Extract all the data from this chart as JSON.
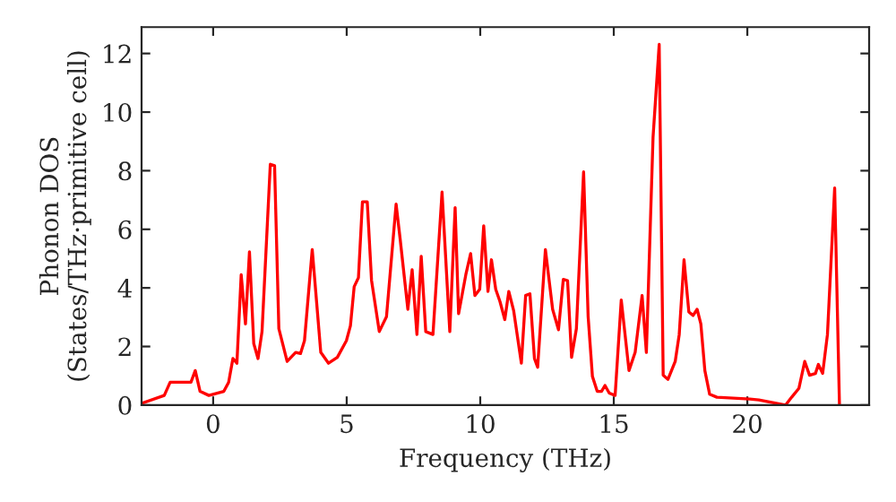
{
  "chart_data": {
    "type": "line",
    "xlabel": "Frequency (THz)",
    "ylabel": "Phonon DOS\n(States/THz·primitive cell)",
    "xlim": [
      -2.68,
      24.56
    ],
    "ylim": [
      0,
      12.9
    ],
    "xticks": [
      0,
      5,
      10,
      15,
      20
    ],
    "yticks": [
      0,
      2,
      4,
      6,
      8,
      10,
      12
    ],
    "grid": false,
    "legend": false,
    "series": [
      {
        "color": "#ff0000",
        "x": [
          -2.68,
          -1.83,
          -1.61,
          -0.83,
          -0.67,
          -0.49,
          -0.16,
          0.4,
          0.58,
          0.74,
          0.89,
          1.05,
          1.21,
          1.36,
          1.52,
          1.68,
          1.83,
          2.14,
          2.3,
          2.46,
          2.77,
          3.09,
          3.27,
          3.42,
          3.71,
          4.03,
          4.32,
          4.65,
          4.99,
          5.14,
          5.28,
          5.44,
          5.59,
          5.77,
          5.93,
          6.22,
          6.49,
          6.85,
          7.0,
          7.29,
          7.45,
          7.63,
          7.79,
          7.96,
          8.23,
          8.57,
          8.86,
          9.06,
          9.19,
          9.46,
          9.64,
          9.8,
          9.98,
          10.13,
          10.29,
          10.42,
          10.58,
          10.74,
          10.92,
          11.07,
          11.25,
          11.54,
          11.7,
          11.86,
          12.03,
          12.15,
          12.44,
          12.71,
          12.93,
          13.11,
          13.27,
          13.42,
          13.6,
          13.87,
          14.04,
          14.2,
          14.38,
          14.54,
          14.67,
          14.83,
          15.05,
          15.28,
          15.57,
          15.8,
          16.06,
          16.22,
          16.47,
          16.7,
          16.85,
          17.03,
          17.3,
          17.45,
          17.63,
          17.81,
          17.97,
          18.12,
          18.26,
          18.41,
          18.59,
          18.86,
          20.09,
          20.43,
          21.43,
          21.66,
          21.93,
          22.15,
          22.33,
          22.55,
          22.66,
          22.82,
          23.0,
          23.27,
          23.45
        ],
        "values": [
          0.06,
          0.33,
          0.78,
          0.78,
          1.18,
          0.47,
          0.33,
          0.47,
          0.78,
          1.59,
          1.43,
          4.45,
          2.77,
          5.23,
          2.1,
          1.59,
          2.51,
          8.22,
          8.17,
          2.61,
          1.49,
          1.8,
          1.76,
          2.2,
          5.31,
          1.8,
          1.43,
          1.63,
          2.2,
          2.71,
          4.04,
          4.35,
          6.94,
          6.94,
          4.26,
          2.51,
          3.02,
          6.86,
          5.68,
          3.27,
          4.62,
          2.41,
          5.08,
          2.51,
          2.41,
          7.27,
          2.51,
          6.74,
          3.12,
          4.45,
          5.17,
          3.74,
          3.95,
          6.12,
          3.88,
          4.96,
          3.95,
          3.53,
          2.92,
          3.88,
          3.23,
          1.43,
          3.74,
          3.8,
          1.59,
          1.29,
          5.31,
          3.27,
          2.57,
          4.29,
          4.25,
          1.63,
          2.61,
          7.96,
          3.02,
          0.98,
          0.47,
          0.47,
          0.67,
          0.41,
          0.33,
          3.59,
          1.18,
          1.8,
          3.74,
          1.8,
          9.14,
          12.31,
          1.02,
          0.88,
          1.49,
          2.41,
          4.96,
          3.18,
          3.06,
          3.27,
          2.77,
          1.18,
          0.37,
          0.27,
          0.21,
          0.18,
          0,
          0.27,
          0.57,
          1.49,
          1.02,
          1.08,
          1.39,
          1.08,
          2.41,
          7.41,
          0
        ]
      }
    ]
  }
}
